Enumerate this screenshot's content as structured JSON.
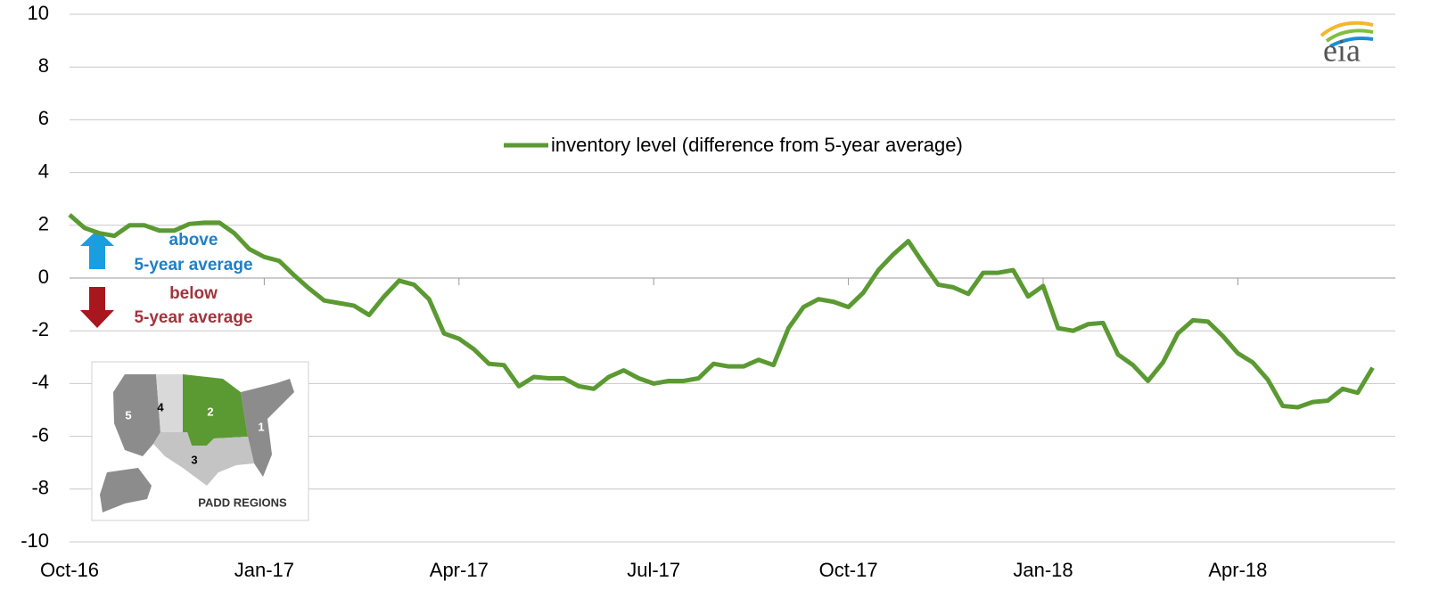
{
  "chart_data": {
    "type": "line",
    "categories": [
      "Oct-16",
      null,
      null,
      null,
      null,
      null,
      null,
      null,
      null,
      null,
      null,
      null,
      null,
      "Jan-17",
      null,
      null,
      null,
      null,
      null,
      null,
      null,
      null,
      null,
      null,
      null,
      null,
      "Apr-17",
      null,
      null,
      null,
      null,
      null,
      null,
      null,
      null,
      null,
      null,
      null,
      null,
      "Jul-17",
      null,
      null,
      null,
      null,
      null,
      null,
      null,
      null,
      null,
      null,
      null,
      null,
      "Oct-17",
      null,
      null,
      null,
      null,
      null,
      null,
      null,
      null,
      null,
      null,
      null,
      null,
      "Jan-18",
      null,
      null,
      null,
      null,
      null,
      null,
      null,
      null,
      null,
      null,
      null,
      null,
      "Apr-18",
      null,
      null,
      null,
      null,
      null,
      null,
      null,
      null,
      null
    ],
    "series": [
      {
        "name": "inventory level (difference from 5-year average)",
        "color": "#5b9a32",
        "values": [
          2.4,
          1.9,
          1.7,
          1.6,
          2.0,
          2.0,
          1.8,
          1.8,
          2.05,
          2.1,
          2.1,
          1.7,
          1.1,
          0.8,
          0.65,
          0.1,
          -0.4,
          -0.85,
          -0.95,
          -1.05,
          -1.4,
          -0.7,
          -0.1,
          -0.25,
          -0.8,
          -2.1,
          -2.3,
          -2.7,
          -3.25,
          -3.3,
          -4.1,
          -3.75,
          -3.8,
          -3.8,
          -4.1,
          -4.2,
          -3.75,
          -3.5,
          -3.8,
          -4.0,
          -3.9,
          -3.9,
          -3.8,
          -3.25,
          -3.35,
          -3.35,
          -3.1,
          -3.3,
          -1.9,
          -1.1,
          -0.8,
          -0.9,
          -1.1,
          -0.55,
          0.3,
          0.9,
          1.4,
          0.55,
          -0.25,
          -0.35,
          -0.6,
          0.2,
          0.2,
          0.3,
          -0.7,
          -0.3,
          -1.9,
          -2.0,
          -1.75,
          -1.7,
          -2.9,
          -3.3,
          -3.9,
          -3.2,
          -2.1,
          -1.6,
          -1.65,
          -2.2,
          -2.85,
          -3.2,
          -3.85,
          -4.85,
          -4.9,
          -4.7,
          -4.65,
          -4.2,
          -4.35,
          -3.4
        ]
      }
    ],
    "ylim": [
      -10,
      10
    ],
    "yticks": [
      -10,
      -8,
      -6,
      -4,
      -2,
      0,
      2,
      4,
      6,
      8,
      10
    ],
    "grid": true,
    "legend": "top",
    "annotations": {
      "above": "above",
      "above_sub": "5-year average",
      "below": "below",
      "below_sub": "5-year average",
      "map_title": "PADD REGIONS",
      "map_labels": [
        "1",
        "2",
        "3",
        "4",
        "5"
      ],
      "logo": "eia"
    }
  }
}
